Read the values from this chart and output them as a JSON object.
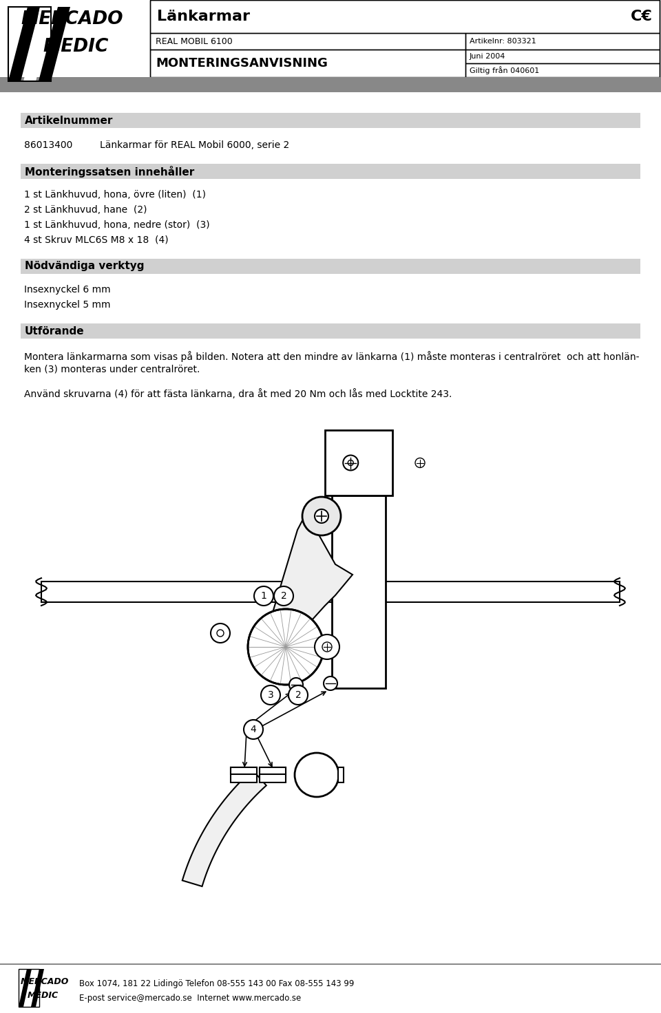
{
  "bg_color": "#ffffff",
  "section_bg": "#d0d0d0",
  "gray_bar_color": "#888888",
  "title_product": "Länkarmar",
  "subtitle1": "REAL MOBIL 6100",
  "article_ref": "Artikelnr: 803321",
  "subtitle2": "MONTERINGSANVISNING",
  "date": "Juni 2004",
  "valid": "Giltig från 040601",
  "section1_title": "Artikelnummer",
  "article_number": "86013400",
  "article_desc": "Länkarmar för REAL Mobil 6000, serie 2",
  "section2_title": "Monteringssatsen innehåller",
  "items": [
    "1 st Länkhuvud, hona, övre (liten)  (1)",
    "2 st Länkhuvud, hane  (2)",
    "1 st Länkhuvud, hona, nedre (stor)  (3)",
    "4 st Skruv MLC6S M8 x 18  (4)"
  ],
  "section3_title": "Nödvändiga verktyg",
  "tools": [
    "Insexnyckel 6 mm",
    "Insexnyckel 5 mm"
  ],
  "section4_title": "Utförande",
  "para1_line1": "Montera länkarmarna som visas på bilden. Notera att den mindre av länkarna (1) måste monteras i centralröret  och att honlän-",
  "para1_line2": "ken (3) monteras under centralröret.",
  "para2": "Använd skruvarna (4) för att fästa länkarna, dra åt med 20 Nm och lås med Locktite 243.",
  "footer_text1": "Box 1074, 181 22 Lidingö Telefon 08-555 143 00 Fax 08-555 143 99",
  "footer_text2": "E-post service@mercado.se  Internet www.mercado.se"
}
